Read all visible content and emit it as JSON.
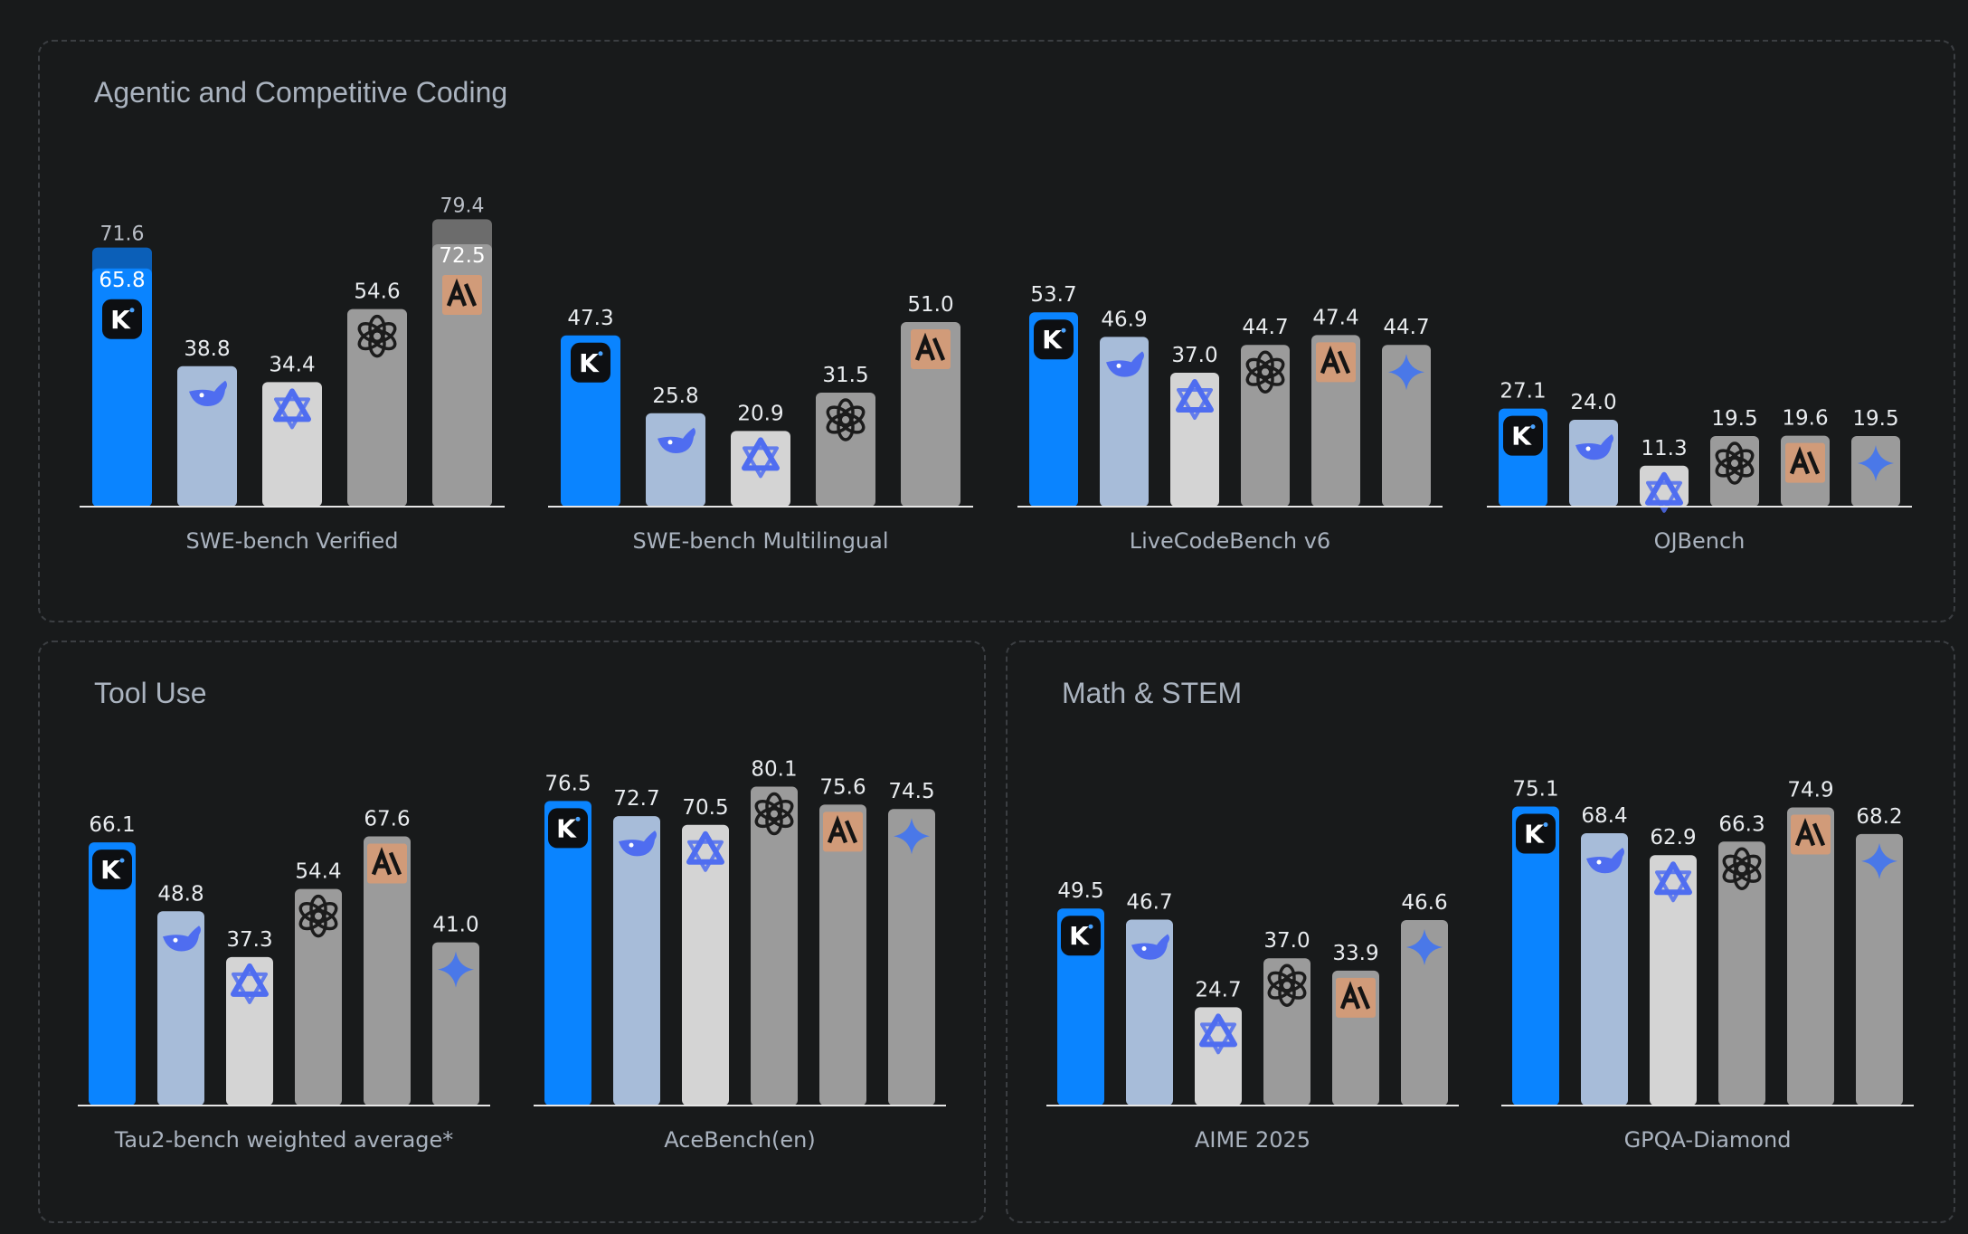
{
  "colors": {
    "kimi": "#0a84ff",
    "deepseek": "#a7bcd9",
    "qwen": "#d4d4d4",
    "openai": "#9b9b9b",
    "anthropic": "#9b9b9b",
    "gemini": "#9b9b9b",
    "anthropic_badge": "#d19b79",
    "icon_blue": "#4f6df0"
  },
  "panels": [
    {
      "title": "Agentic and Competitive Coding"
    },
    {
      "title": "Tool Use"
    },
    {
      "title": "Math & STEM"
    }
  ],
  "chart_data": [
    {
      "type": "bar",
      "title": "",
      "label": "SWE-bench Verified",
      "ylim": [
        0,
        80
      ],
      "models": [
        "kimi",
        "deepseek",
        "qwen",
        "openai",
        "anthropic"
      ],
      "values": [
        65.8,
        38.8,
        34.4,
        54.6,
        72.5
      ],
      "extended_values": [
        71.6,
        null,
        null,
        null,
        79.4
      ],
      "labels": [
        "65.8",
        "38.8",
        "34.4",
        "54.6",
        "72.5"
      ],
      "extended_labels": [
        "71.6",
        null,
        null,
        null,
        "79.4"
      ]
    },
    {
      "type": "bar",
      "title": "",
      "label": "SWE-bench Multilingual",
      "ylim": [
        0,
        80
      ],
      "models": [
        "kimi",
        "deepseek",
        "qwen",
        "openai",
        "anthropic"
      ],
      "values": [
        47.3,
        25.8,
        20.9,
        31.5,
        51.0
      ],
      "labels": [
        "47.3",
        "25.8",
        "20.9",
        "31.5",
        "51.0"
      ]
    },
    {
      "type": "bar",
      "title": "",
      "label": "LiveCodeBench v6",
      "ylim": [
        0,
        80
      ],
      "models": [
        "kimi",
        "deepseek",
        "qwen",
        "openai",
        "anthropic",
        "gemini"
      ],
      "values": [
        53.7,
        46.9,
        37.0,
        44.7,
        47.4,
        44.7
      ],
      "labels": [
        "53.7",
        "46.9",
        "37.0",
        "44.7",
        "47.4",
        "44.7"
      ]
    },
    {
      "type": "bar",
      "title": "",
      "label": "OJBench",
      "ylim": [
        0,
        80
      ],
      "models": [
        "kimi",
        "deepseek",
        "qwen",
        "openai",
        "anthropic",
        "gemini"
      ],
      "values": [
        27.1,
        24.0,
        11.3,
        19.5,
        19.6,
        19.5
      ],
      "labels": [
        "27.1",
        "24.0",
        "11.3",
        "19.5",
        "19.6",
        "19.5"
      ]
    },
    {
      "type": "bar",
      "title": "",
      "label": "Tau2-bench weighted average*",
      "ylim": [
        0,
        85
      ],
      "models": [
        "kimi",
        "deepseek",
        "qwen",
        "openai",
        "anthropic",
        "gemini"
      ],
      "values": [
        66.1,
        48.8,
        37.3,
        54.4,
        67.6,
        41.0
      ],
      "labels": [
        "66.1",
        "48.8",
        "37.3",
        "54.4",
        "67.6",
        "41.0"
      ]
    },
    {
      "type": "bar",
      "title": "",
      "label": "AceBench(en)",
      "ylim": [
        0,
        85
      ],
      "models": [
        "kimi",
        "deepseek",
        "qwen",
        "openai",
        "anthropic",
        "gemini"
      ],
      "values": [
        76.5,
        72.7,
        70.5,
        80.1,
        75.6,
        74.5
      ],
      "labels": [
        "76.5",
        "72.7",
        "70.5",
        "80.1",
        "75.6",
        "74.5"
      ]
    },
    {
      "type": "bar",
      "title": "",
      "label": "AIME 2025",
      "ylim": [
        0,
        85
      ],
      "models": [
        "kimi",
        "deepseek",
        "qwen",
        "openai",
        "anthropic",
        "gemini"
      ],
      "values": [
        49.5,
        46.7,
        24.7,
        37.0,
        33.9,
        46.6
      ],
      "labels": [
        "49.5",
        "46.7",
        "24.7",
        "37.0",
        "33.9",
        "46.6"
      ]
    },
    {
      "type": "bar",
      "title": "",
      "label": "GPQA-Diamond",
      "ylim": [
        0,
        85
      ],
      "models": [
        "kimi",
        "deepseek",
        "qwen",
        "openai",
        "anthropic",
        "gemini"
      ],
      "values": [
        75.1,
        68.4,
        62.9,
        66.3,
        74.9,
        68.2
      ],
      "labels": [
        "75.1",
        "68.4",
        "62.9",
        "66.3",
        "74.9",
        "68.2"
      ]
    }
  ]
}
